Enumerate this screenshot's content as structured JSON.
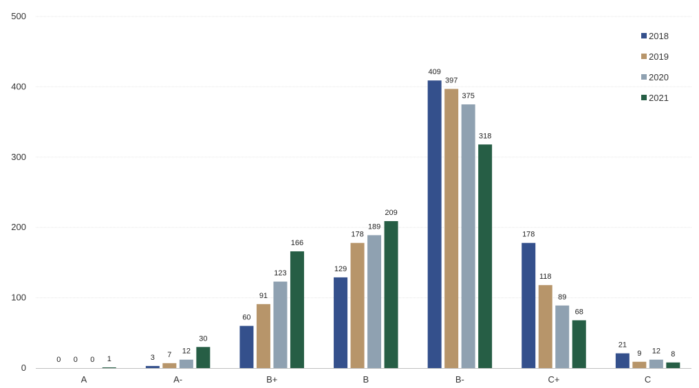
{
  "chart_data": {
    "type": "bar",
    "title": "",
    "xlabel": "",
    "ylabel": "",
    "ylim": [
      0,
      500
    ],
    "yticks": [
      0,
      100,
      200,
      300,
      400,
      500
    ],
    "grid": true,
    "legend_position": "top-right",
    "categories": [
      "A",
      "A-",
      "B+",
      "B",
      "B-",
      "C+",
      "C"
    ],
    "series": [
      {
        "name": "2018",
        "color": "#34508c",
        "values": [
          0,
          3,
          60,
          129,
          409,
          178,
          21
        ]
      },
      {
        "name": "2019",
        "color": "#b7956a",
        "values": [
          0,
          7,
          91,
          178,
          397,
          118,
          9
        ]
      },
      {
        "name": "2020",
        "color": "#8fa1b1",
        "values": [
          0,
          12,
          123,
          189,
          375,
          89,
          12
        ]
      },
      {
        "name": "2021",
        "color": "#265e45",
        "values": [
          1,
          30,
          166,
          209,
          318,
          68,
          8
        ]
      }
    ]
  }
}
